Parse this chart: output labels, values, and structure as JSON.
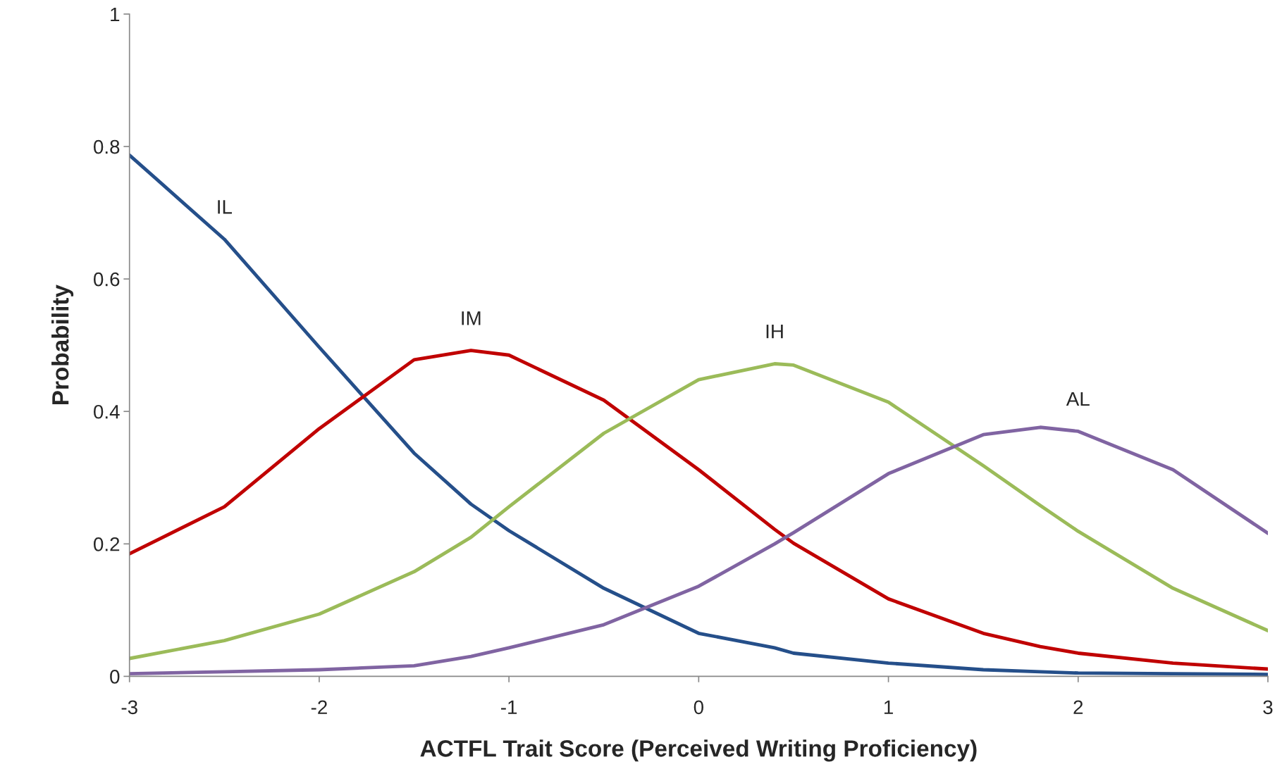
{
  "chart_data": {
    "type": "line",
    "xlabel": "ACTFL Trait Score (Perceived Writing Proficiency)",
    "ylabel": "Probability",
    "x": [
      -3,
      -2.5,
      -2,
      -1.5,
      -1.2,
      -1,
      -0.5,
      0,
      0.4,
      0.5,
      1,
      1.5,
      1.8,
      2,
      2.5,
      3
    ],
    "series": [
      {
        "color": "#254f8a",
        "values": [
          0.787,
          0.66,
          0.497,
          0.337,
          0.26,
          0.22,
          0.133,
          0.065,
          0.043,
          0.035,
          0.02,
          0.01,
          0.007,
          0.005,
          0.004,
          0.003
        ]
      },
      {
        "color": "#c00000",
        "values": [
          0.185,
          0.256,
          0.374,
          0.478,
          0.492,
          0.485,
          0.417,
          0.312,
          0.222,
          0.201,
          0.117,
          0.065,
          0.045,
          0.035,
          0.02,
          0.011
        ]
      },
      {
        "color": "#9bbb59",
        "values": [
          0.027,
          0.054,
          0.094,
          0.158,
          0.21,
          0.256,
          0.367,
          0.448,
          0.472,
          0.47,
          0.414,
          0.318,
          0.258,
          0.219,
          0.133,
          0.069
        ]
      },
      {
        "color": "#8064a2",
        "values": [
          0.004,
          0.007,
          0.01,
          0.016,
          0.03,
          0.043,
          0.078,
          0.136,
          0.2,
          0.217,
          0.306,
          0.365,
          0.376,
          0.37,
          0.312,
          0.216
        ]
      }
    ],
    "annotations": [
      {
        "text": "IL",
        "x": -2.5,
        "y": 0.66
      },
      {
        "text": "IM",
        "x": -1.2,
        "y": 0.492
      },
      {
        "text": "IH",
        "x": 0.4,
        "y": 0.472
      },
      {
        "text": "AL",
        "x": 2.0,
        "y": 0.37
      }
    ],
    "xlim": [
      -3,
      3
    ],
    "ylim": [
      0,
      1
    ],
    "xticks": [
      -3,
      -2,
      -1,
      0,
      1,
      2,
      3
    ],
    "yticks": [
      0,
      0.2,
      0.4,
      0.6,
      0.8,
      1
    ],
    "grid": false,
    "legend": false,
    "marker": "none",
    "line_style": "solid"
  }
}
